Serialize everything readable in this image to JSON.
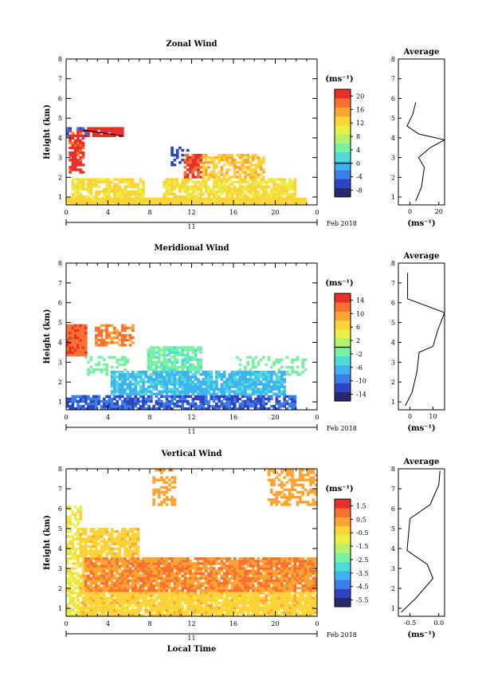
{
  "chart_data": [
    {
      "type": "heatmap",
      "title": "Zonal Wind",
      "xlabel": "",
      "ylabel": "Height (km)",
      "xlim": [
        0,
        24
      ],
      "ylim": [
        0.6,
        8
      ],
      "xticks": [
        "0",
        "4",
        "8",
        "12",
        "16",
        "20",
        "0"
      ],
      "yticks": [
        "1",
        "2",
        "3",
        "4",
        "5",
        "6",
        "7",
        "8"
      ],
      "date_day": "11",
      "date_month": "Feb 2018",
      "colorbar": {
        "unit": "(ms⁻¹)",
        "ticks": [
          "20",
          "16",
          "12",
          "8",
          "4",
          "0",
          "-4",
          "-8"
        ],
        "min": -10,
        "max": 22,
        "zero_line": 0
      },
      "average": {
        "title": "Average",
        "xticks": [
          "0",
          "20"
        ],
        "xlabel": "(ms⁻¹)",
        "xlim": [
          -8,
          24
        ]
      }
    },
    {
      "type": "heatmap",
      "title": "Meridional Wind",
      "xlabel": "",
      "ylabel": "Height (km)",
      "xlim": [
        0,
        24
      ],
      "ylim": [
        0.6,
        8
      ],
      "xticks": [
        "0",
        "4",
        "8",
        "12",
        "16",
        "20",
        "0"
      ],
      "yticks": [
        "1",
        "2",
        "3",
        "4",
        "5",
        "6",
        "7",
        "8"
      ],
      "date_day": "11",
      "date_month": "Feb 2018",
      "colorbar": {
        "unit": "(ms⁻¹)",
        "ticks": [
          "14",
          "10",
          "6",
          "2",
          "-2",
          "-6",
          "-10",
          "-14"
        ],
        "min": -16,
        "max": 16,
        "zero_line": 0
      },
      "average": {
        "title": "Average",
        "xticks": [
          "0",
          "10"
        ],
        "xlabel": "(ms⁻¹)",
        "xlim": [
          -5,
          15
        ]
      }
    },
    {
      "type": "heatmap",
      "title": "Vertical Wind",
      "xlabel": "Local Time",
      "ylabel": "Height (km)",
      "xlim": [
        0,
        24
      ],
      "ylim": [
        0.6,
        8
      ],
      "xticks": [
        "0",
        "4",
        "8",
        "12",
        "16",
        "20",
        "0"
      ],
      "yticks": [
        "1",
        "2",
        "3",
        "4",
        "5",
        "6",
        "7",
        "8"
      ],
      "date_day": "11",
      "date_month": "Feb 2018",
      "colorbar": {
        "unit": "(ms⁻¹)",
        "ticks": [
          "1.5",
          "0.5",
          "-0.5",
          "-1.5",
          "-2.5",
          "-3.5",
          "-4.5",
          "-5.5"
        ],
        "min": -6,
        "max": 2
      },
      "average": {
        "title": "Average",
        "xticks": [
          "-0.5",
          "0.0"
        ],
        "xlabel": "(ms⁻¹)",
        "xlim": [
          -0.7,
          0.1
        ]
      }
    }
  ],
  "colors": {
    "scale": [
      "#262a6a",
      "#2f44c0",
      "#3c7de8",
      "#3fb3ef",
      "#4fdcd8",
      "#7af0a4",
      "#b5f26c",
      "#e8ef45",
      "#fdd33a",
      "#fca535",
      "#f7722f",
      "#e8302a"
    ]
  }
}
